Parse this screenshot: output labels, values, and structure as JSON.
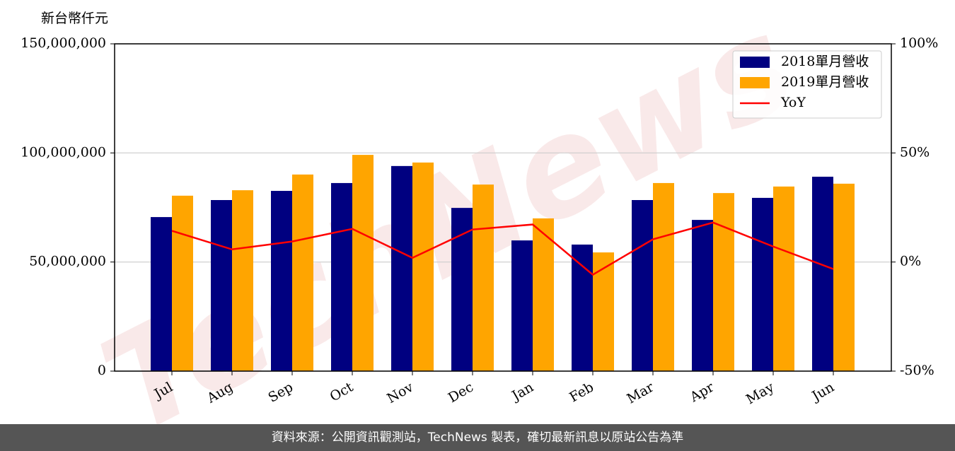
{
  "chart_data": {
    "type": "bar",
    "y_label": "新台幣仟元",
    "watermark": "TechNews",
    "categories": [
      "Jul",
      "Aug",
      "Sep",
      "Oct",
      "Nov",
      "Dec",
      "Jan",
      "Feb",
      "Mar",
      "Apr",
      "May",
      "Jun"
    ],
    "series": [
      {
        "name": "2018單月營收",
        "color": "#000080",
        "values": [
          70600000,
          78400000,
          82600000,
          86200000,
          94000000,
          74800000,
          59900000,
          58000000,
          78400000,
          69300000,
          79400000,
          89100000
        ]
      },
      {
        "name": "2019單月營收",
        "color": "#ffa500",
        "values": [
          80400000,
          82900000,
          90100000,
          99100000,
          95600000,
          85500000,
          70000000,
          54400000,
          86200000,
          81600000,
          84600000,
          85900000
        ]
      },
      {
        "name": "YoY",
        "color": "#ff0000",
        "type": "line",
        "axis": "y2",
        "values": [
          14.3,
          5.8,
          9.4,
          15.2,
          1.9,
          14.9,
          17.2,
          -5.8,
          10.4,
          18.1,
          7.1,
          -3.2
        ]
      }
    ],
    "ylim": [
      0,
      150000000
    ],
    "yticks": [
      0,
      {
        "value": 50000000,
        "label": "50,000,000"
      },
      {
        "value": 100000000,
        "label": "100,000,000"
      },
      {
        "value": 150000000,
        "label": "150,000,000"
      }
    ],
    "y2lim": [
      -50,
      100
    ],
    "y2ticks": [
      {
        "value": -50,
        "label": "-50%"
      },
      {
        "value": 0,
        "label": "0%"
      },
      {
        "value": 50,
        "label": "50%"
      },
      {
        "value": 100,
        "label": "100%"
      }
    ],
    "grid": true,
    "legend": "upper right"
  },
  "footer": "資料來源：公開資訊觀測站，TechNews 製表，確切最新訊息以原站公告為準"
}
